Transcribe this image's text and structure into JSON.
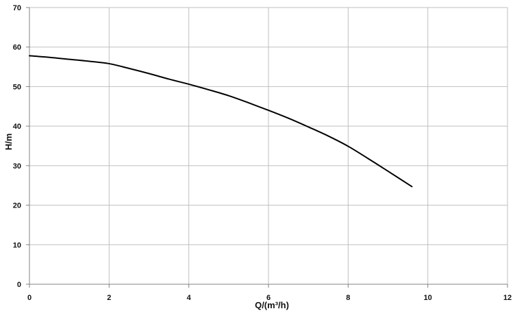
{
  "chart_data": {
    "type": "line",
    "xlabel": "Q/(m³/h)",
    "ylabel": "H/m",
    "xlim": [
      0,
      12
    ],
    "ylim": [
      0,
      70
    ],
    "x_ticks": [
      0,
      2,
      4,
      6,
      8,
      10,
      12
    ],
    "y_ticks": [
      0,
      10,
      20,
      30,
      40,
      50,
      60,
      70
    ],
    "grid": true,
    "legend": "none",
    "colors": {
      "line": "#000000",
      "grid": "#bfbfbf",
      "axis": "#808080",
      "background": "#ffffff"
    },
    "series": [
      {
        "x": [
          0,
          0.5,
          1,
          1.5,
          2,
          2.5,
          3,
          3.5,
          4,
          4.5,
          5,
          5.5,
          6,
          6.5,
          7,
          7.5,
          8,
          8.5,
          9,
          9.6
        ],
        "y": [
          57.8,
          57.4,
          56.9,
          56.4,
          55.8,
          54.6,
          53.3,
          51.9,
          50.6,
          49.2,
          47.7,
          45.9,
          44.0,
          42.0,
          39.8,
          37.5,
          34.9,
          31.8,
          28.6,
          24.7
        ]
      }
    ]
  }
}
